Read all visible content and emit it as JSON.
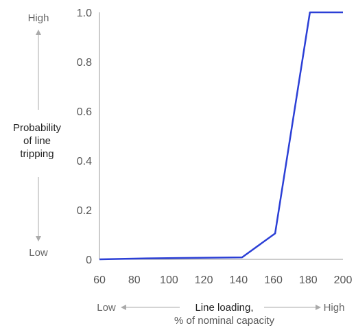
{
  "chart_data": {
    "type": "line",
    "x": [
      60,
      87,
      142,
      161,
      181,
      200
    ],
    "series": [
      {
        "values": [
          0.0,
          0.004,
          0.008,
          0.105,
          1.0,
          1.0
        ],
        "color": "#2b3fd6"
      }
    ],
    "ylabel": [
      "Probability",
      "of line",
      "tripping"
    ],
    "y_high_label": "High",
    "y_low_label": "Low",
    "xlabel": "Line loading,",
    "xlabel_sub": "% of nominal capacity",
    "x_low_label": "Low",
    "x_high_label": "High",
    "x_ticks": [
      "60",
      "80",
      "100",
      "120",
      "140",
      "160",
      "180",
      "200"
    ],
    "y_ticks": [
      "0",
      "0.2",
      "0.4",
      "0.6",
      "0.8",
      "1.0"
    ],
    "xlim": [
      60,
      200
    ],
    "ylim": [
      0,
      1.0
    ],
    "grid": false,
    "axis_color": "#9a9a9a",
    "arrow_color": "#aaaaaa"
  }
}
